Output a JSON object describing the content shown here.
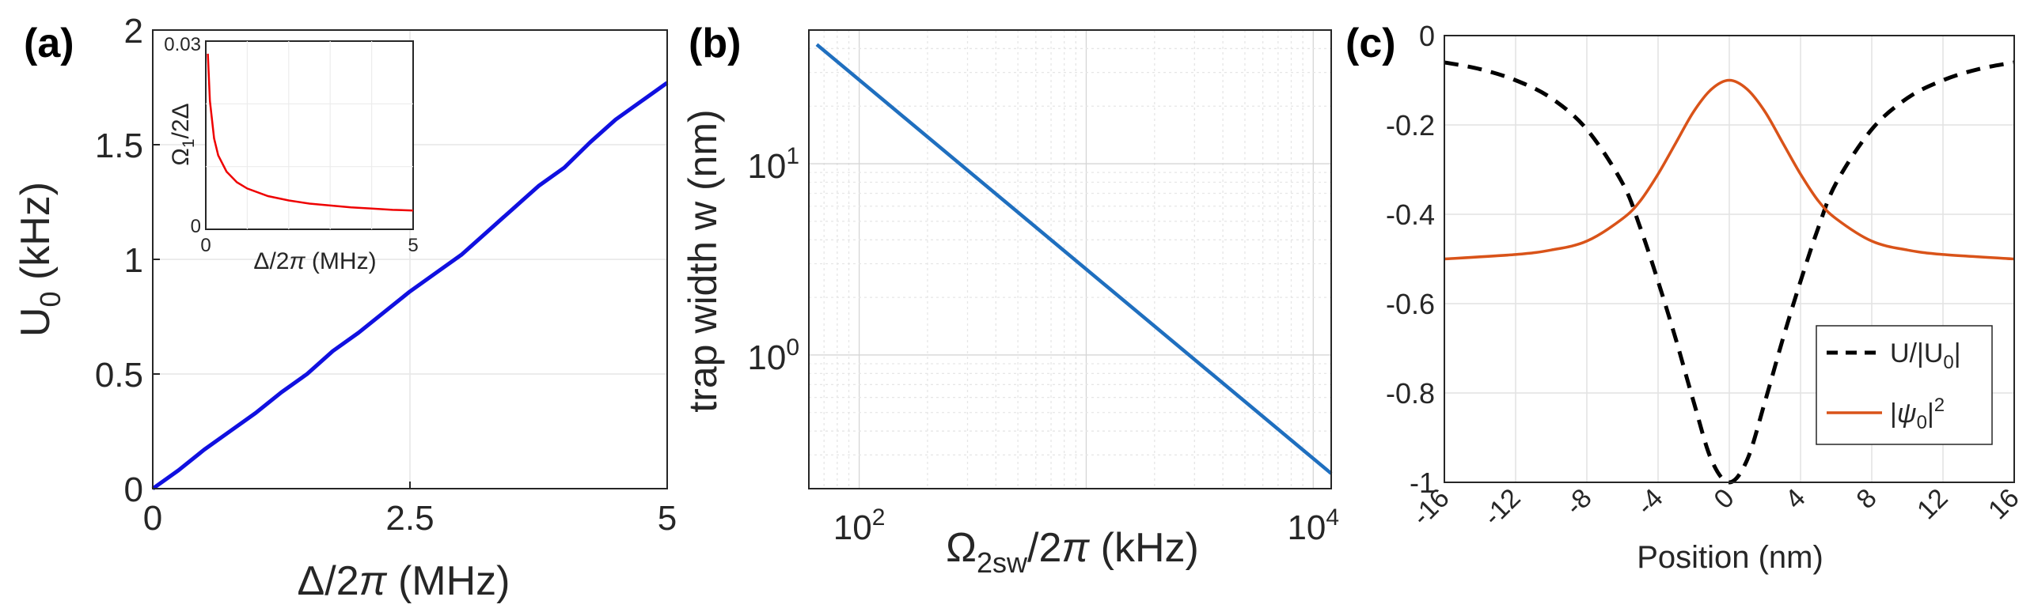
{
  "chart_data": [
    {
      "panel_label": "(a)",
      "type": "line",
      "xlim": [
        0,
        5
      ],
      "ylim": [
        0,
        2
      ],
      "xticks": [
        "0",
        "2.5",
        "5"
      ],
      "yticks": [
        "0",
        "0.5",
        "1",
        "1.5",
        "2"
      ],
      "grid": true,
      "series": [
        {
          "color": "#1010e0",
          "x": [
            0,
            0.25,
            0.5,
            0.75,
            1.0,
            1.25,
            1.5,
            1.75,
            2.0,
            2.25,
            2.5,
            2.75,
            3.0,
            3.25,
            3.5,
            3.75,
            4.0,
            4.25,
            4.5,
            4.75,
            5.0
          ],
          "y": [
            0,
            0.08,
            0.17,
            0.25,
            0.33,
            0.42,
            0.5,
            0.6,
            0.68,
            0.77,
            0.86,
            0.94,
            1.02,
            1.12,
            1.22,
            1.32,
            1.4,
            1.51,
            1.61,
            1.69,
            1.77
          ]
        }
      ],
      "inset": {
        "xlim": [
          0,
          5
        ],
        "ylim": [
          0,
          0.03
        ],
        "xticks": [
          "0",
          "5"
        ],
        "yticks": [
          "0",
          "0.03"
        ],
        "series": [
          {
            "color": "#ee0000",
            "x": [
              0.05,
              0.1,
              0.2,
              0.3,
              0.5,
              0.75,
              1.0,
              1.5,
              2.0,
              2.5,
              3.0,
              3.5,
              4.0,
              4.5,
              5.0
            ],
            "y": [
              0.028,
              0.0205,
              0.0145,
              0.0118,
              0.0092,
              0.0075,
              0.0065,
              0.0053,
              0.0046,
              0.0041,
              0.0038,
              0.0035,
              0.0033,
              0.0031,
              0.003
            ]
          }
        ]
      }
    },
    {
      "panel_label": "(b)",
      "type": "line",
      "xscale": "log",
      "yscale": "log",
      "xlim": [
        60,
        12000
      ],
      "ylim": [
        0.2,
        50
      ],
      "xticks": [
        {
          "base": "10",
          "exp": "2",
          "value": 100
        },
        {
          "base": "10",
          "exp": "4",
          "value": 10000
        }
      ],
      "yticks": [
        {
          "base": "10",
          "exp": "0",
          "value": 1
        },
        {
          "base": "10",
          "exp": "1",
          "value": 10
        }
      ],
      "grid": true,
      "series": [
        {
          "color": "#1f6fbf",
          "x": [
            65,
            12000
          ],
          "y": [
            42,
            0.24
          ]
        }
      ]
    },
    {
      "panel_label": "(c)",
      "type": "line",
      "xlim": [
        -16,
        16
      ],
      "ylim": [
        -1,
        0
      ],
      "xticks": [
        "-16",
        "-12",
        "-8",
        "-4",
        "0",
        "4",
        "8",
        "12",
        "16"
      ],
      "yticks": [
        "0",
        "-0.2",
        "-0.4",
        "-0.6",
        "-0.8",
        "-1"
      ],
      "xlabel": "Position (nm)",
      "grid": true,
      "legend": "bottom-right",
      "series": [
        {
          "name": "U/|U0|",
          "color": "#000000",
          "dash": true,
          "x": [
            -16,
            -14,
            -12,
            -10,
            -8,
            -6,
            -5,
            -4,
            -3,
            -2,
            -1,
            0,
            1,
            2,
            3,
            4,
            5,
            6,
            8,
            10,
            12,
            14,
            16
          ],
          "y": [
            -0.06,
            -0.075,
            -0.1,
            -0.14,
            -0.21,
            -0.33,
            -0.43,
            -0.55,
            -0.68,
            -0.82,
            -0.95,
            -1.0,
            -0.95,
            -0.82,
            -0.68,
            -0.55,
            -0.43,
            -0.33,
            -0.21,
            -0.14,
            -0.1,
            -0.075,
            -0.06
          ]
        },
        {
          "name": "|ψ0|²",
          "color": "#d95319",
          "x": [
            -16,
            -12,
            -10,
            -8,
            -6,
            -5,
            -4,
            -3,
            -2,
            -1,
            0,
            1,
            2,
            3,
            4,
            5,
            6,
            8,
            10,
            12,
            16
          ],
          "y": [
            -0.5,
            -0.49,
            -0.48,
            -0.46,
            -0.41,
            -0.37,
            -0.31,
            -0.24,
            -0.17,
            -0.12,
            -0.1,
            -0.12,
            -0.17,
            -0.24,
            -0.31,
            -0.37,
            -0.41,
            -0.46,
            -0.48,
            -0.49,
            -0.5
          ]
        }
      ]
    }
  ]
}
